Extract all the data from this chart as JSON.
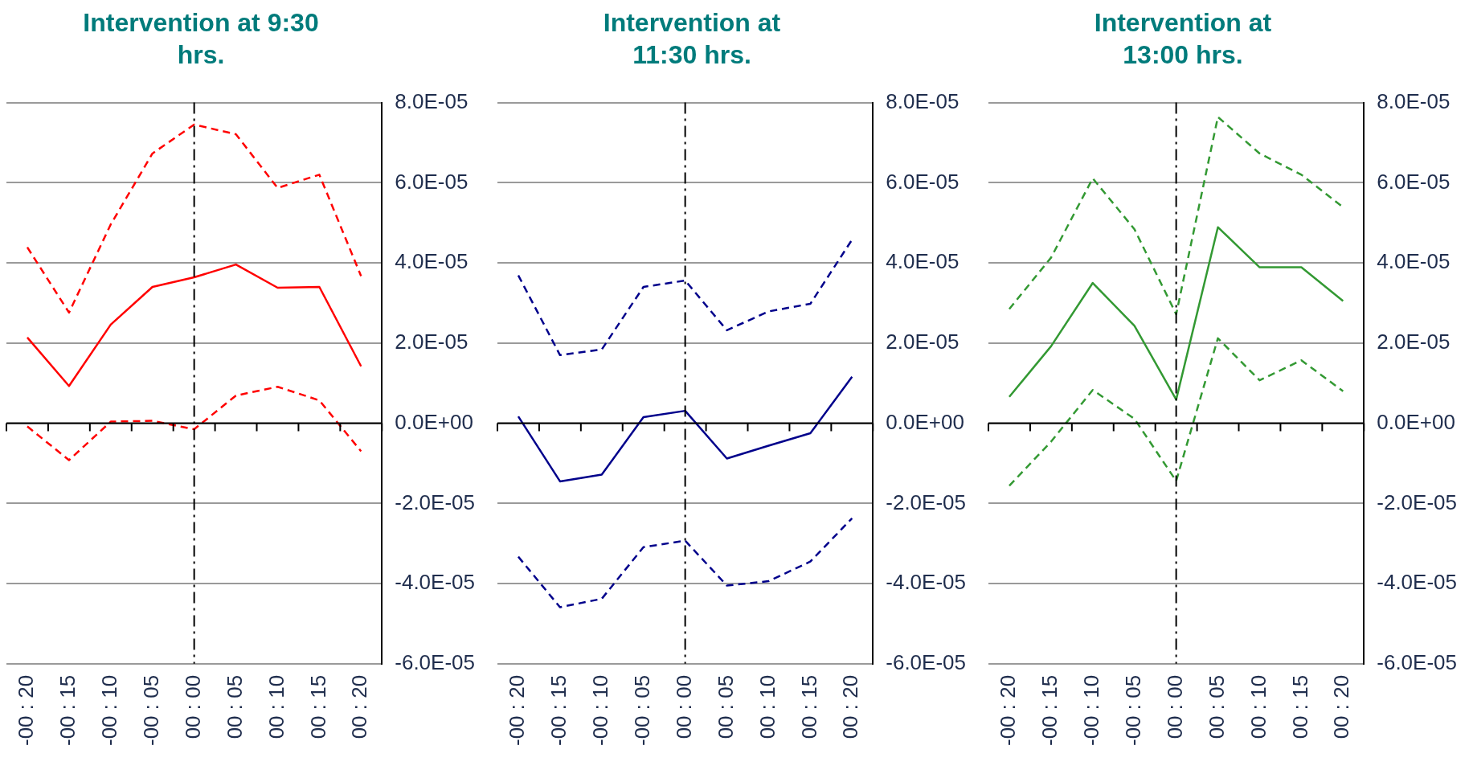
{
  "chart_data": [
    {
      "type": "line",
      "title": "Intervention at 9:30 hrs.",
      "categories": [
        "-00 : 20",
        "-00 : 15",
        "-00 : 10",
        "-00 : 05",
        "00 : 00",
        "00 : 05",
        "00 : 10",
        "00 : 15",
        "00 : 20"
      ],
      "series": [
        {
          "color": "#ff0000",
          "line_style": "solid",
          "values": [
            2.14e-05,
            9.3e-06,
            2.46e-05,
            3.4e-05,
            3.64e-05,
            3.96e-05,
            3.38e-05,
            3.4e-05,
            1.42e-05
          ]
        },
        {
          "color": "#ff0000",
          "line_style": "dashed",
          "values": [
            4.39e-05,
            2.76e-05,
            4.96e-05,
            6.73e-05,
            7.45e-05,
            7.21e-05,
            5.87e-05,
            6.2e-05,
            3.67e-05
          ]
        },
        {
          "color": "#ff0000",
          "line_style": "dashed",
          "values": [
            -8e-07,
            -9.2e-06,
            4e-07,
            6e-07,
            -1.5e-06,
            6.9e-06,
            9.1e-06,
            5.7e-06,
            -7e-06
          ]
        }
      ],
      "ylim": [
        -6e-05,
        8e-05
      ],
      "yticks": [
        {
          "value": -6e-05,
          "label": "-6.0E-05"
        },
        {
          "value": -4e-05,
          "label": "-4.0E-05"
        },
        {
          "value": -2e-05,
          "label": "-2.0E-05"
        },
        {
          "value": 0,
          "label": "0.0E+00"
        },
        {
          "value": 2e-05,
          "label": "2.0E-05"
        },
        {
          "value": 4e-05,
          "label": "4.0E-05"
        },
        {
          "value": 6e-05,
          "label": "6.0E-05"
        },
        {
          "value": 8e-05,
          "label": "8.0E-05"
        }
      ],
      "grid": "y",
      "ref_lines": [
        {
          "axis": "x",
          "value": "00 : 00"
        }
      ]
    },
    {
      "type": "line",
      "title": "Intervention at 11:30 hrs.",
      "categories": [
        "-00 : 20",
        "-00 : 15",
        "-00 : 10",
        "-00 : 05",
        "00 : 00",
        "00 : 05",
        "00 : 10",
        "00 : 15",
        "00 : 20"
      ],
      "series": [
        {
          "color": "#00008b",
          "line_style": "solid",
          "values": [
            1.7e-06,
            -1.45e-05,
            -1.28e-05,
            1.5e-06,
            3.1e-06,
            -8.8e-06,
            -5.6e-06,
            -2.5e-06,
            1.16e-05
          ]
        },
        {
          "color": "#00008b",
          "line_style": "dashed",
          "values": [
            3.69e-05,
            1.7e-05,
            1.84e-05,
            3.4e-05,
            3.56e-05,
            2.32e-05,
            2.79e-05,
            2.98e-05,
            4.58e-05
          ]
        },
        {
          "color": "#00008b",
          "line_style": "dashed",
          "values": [
            -3.33e-05,
            -4.59e-05,
            -4.38e-05,
            -3.09e-05,
            -2.93e-05,
            -4.05e-05,
            -3.94e-05,
            -3.45e-05,
            -2.37e-05
          ]
        }
      ],
      "ylim": [
        -6e-05,
        8e-05
      ],
      "yticks": [
        {
          "value": -6e-05,
          "label": "-6.0E-05"
        },
        {
          "value": -4e-05,
          "label": "-4.0E-05"
        },
        {
          "value": -2e-05,
          "label": "-2.0E-05"
        },
        {
          "value": 0,
          "label": "0.0E+00"
        },
        {
          "value": 2e-05,
          "label": "2.0E-05"
        },
        {
          "value": 4e-05,
          "label": "4.0E-05"
        },
        {
          "value": 6e-05,
          "label": "6.0E-05"
        },
        {
          "value": 8e-05,
          "label": "8.0E-05"
        }
      ],
      "grid": "y",
      "ref_lines": [
        {
          "axis": "x",
          "value": "00 : 00"
        }
      ]
    },
    {
      "type": "line",
      "title": "Intervention at 13:00 hrs.",
      "categories": [
        "-00 : 20",
        "-00 : 15",
        "-00 : 10",
        "-00 : 05",
        "00 : 00",
        "00 : 05",
        "00 : 10",
        "00 : 15",
        "00 : 20"
      ],
      "series": [
        {
          "color": "#339933",
          "line_style": "solid",
          "values": [
            6.6e-06,
            1.92e-05,
            3.5e-05,
            2.43e-05,
            5.9e-06,
            4.89e-05,
            3.89e-05,
            3.89e-05,
            3.05e-05
          ]
        },
        {
          "color": "#339933",
          "line_style": "dashed",
          "values": [
            2.85e-05,
            4.13e-05,
            6.11e-05,
            4.84e-05,
            2.72e-05,
            7.64e-05,
            6.73e-05,
            6.2e-05,
            5.39e-05
          ]
        },
        {
          "color": "#339933",
          "line_style": "dashed",
          "values": [
            -1.56e-05,
            -4.6e-06,
            8.3e-06,
            1.1e-06,
            -1.44e-05,
            2.12e-05,
            1.07e-05,
            1.57e-05,
            8e-06
          ]
        }
      ],
      "ylim": [
        -6e-05,
        8e-05
      ],
      "yticks": [
        {
          "value": -6e-05,
          "label": "-6.0E-05"
        },
        {
          "value": -4e-05,
          "label": "-4.0E-05"
        },
        {
          "value": -2e-05,
          "label": "-2.0E-05"
        },
        {
          "value": 0,
          "label": "0.0E+00"
        },
        {
          "value": 2e-05,
          "label": "2.0E-05"
        },
        {
          "value": 4e-05,
          "label": "4.0E-05"
        },
        {
          "value": 6e-05,
          "label": "6.0E-05"
        },
        {
          "value": 8e-05,
          "label": "8.0E-05"
        }
      ],
      "grid": "y",
      "ref_lines": [
        {
          "axis": "x",
          "value": "00 : 00"
        }
      ]
    }
  ]
}
